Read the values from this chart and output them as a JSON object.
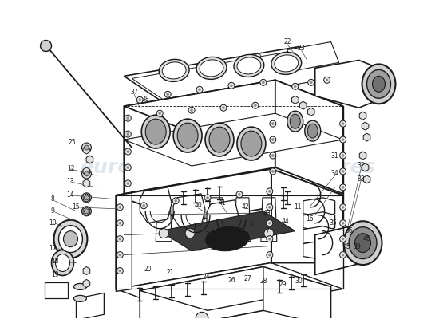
{
  "bg_color": "#ffffff",
  "line_color": "#1a1a1a",
  "watermark1": "eurospAres",
  "watermark2": "eurospAres",
  "wm_color": "#b8c8d8",
  "wm_alpha": 0.45,
  "lw_main": 1.3,
  "lw_thin": 0.7,
  "lw_med": 1.0
}
